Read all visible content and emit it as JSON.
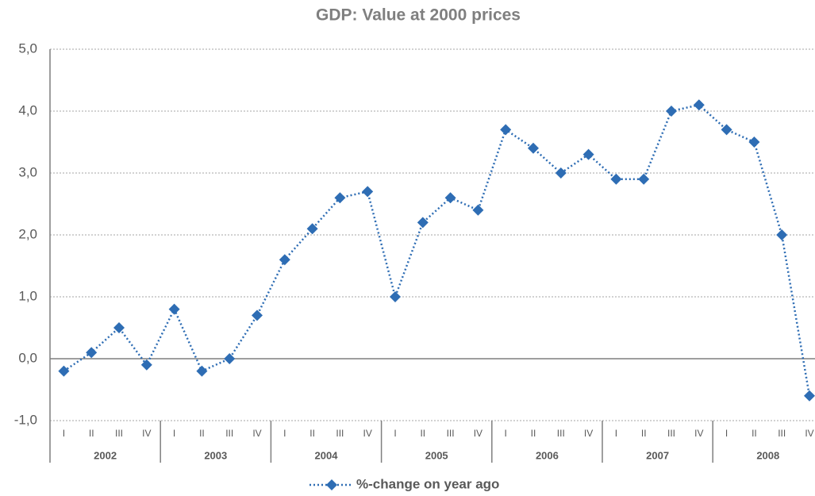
{
  "chart_data": {
    "type": "line",
    "title": "GDP: Value at 2000 prices",
    "categories": [
      "I",
      "II",
      "III",
      "IV",
      "I",
      "II",
      "III",
      "IV",
      "I",
      "II",
      "III",
      "IV",
      "I",
      "II",
      "III",
      "IV",
      "I",
      "II",
      "III",
      "IV",
      "I",
      "II",
      "III",
      "IV",
      "I",
      "II",
      "III",
      "IV"
    ],
    "year_groups": [
      "2002",
      "2003",
      "2004",
      "2005",
      "2006",
      "2007",
      "2008"
    ],
    "series": [
      {
        "name": "%-change on year ago",
        "color": "#2e6db4",
        "values": [
          -0.2,
          0.1,
          0.5,
          -0.1,
          0.8,
          -0.2,
          0.0,
          0.7,
          1.6,
          2.1,
          2.6,
          2.7,
          1.0,
          2.2,
          2.6,
          2.4,
          3.7,
          3.4,
          3.0,
          3.3,
          2.9,
          2.9,
          4.0,
          4.1,
          3.7,
          3.5,
          2.0,
          -0.6
        ]
      }
    ],
    "ylim": [
      -1,
      5
    ],
    "yticks": [
      {
        "value": -1,
        "label": "-1,0"
      },
      {
        "value": 0,
        "label": "0,0"
      },
      {
        "value": 1,
        "label": "1,0"
      },
      {
        "value": 2,
        "label": "2,0"
      },
      {
        "value": 3,
        "label": "3,0"
      },
      {
        "value": 4,
        "label": "4,0"
      },
      {
        "value": 5,
        "label": "5,0"
      }
    ],
    "grid": true,
    "legend": "bottom"
  }
}
